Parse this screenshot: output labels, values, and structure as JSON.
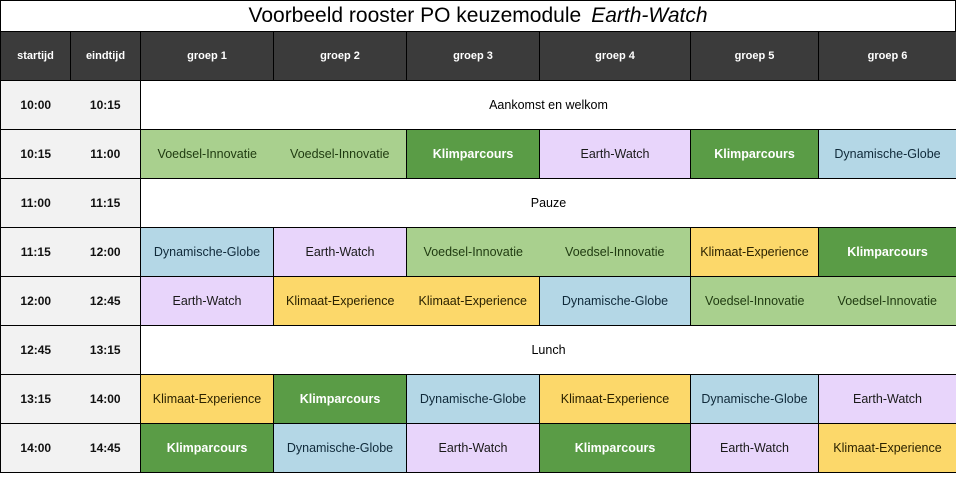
{
  "title": {
    "main": "Voorbeeld rooster PO keuzemodule",
    "italic": "Earth-Watch"
  },
  "headers": [
    "startijd",
    "eindtijd",
    "groep 1",
    "groep 2",
    "groep 3",
    "groep 4",
    "groep 5",
    "groep 6"
  ],
  "colors": {
    "header_bg": "#3b3b3b",
    "time_bg": "#f2f2f2",
    "Voedsel-Innovatie": "#a9d08e",
    "Klimparcours": "#5a9c46",
    "Earth-Watch": "#e8d5fb",
    "Dynamische-Globe": "#b4d7e6",
    "Klimaat-Experience": "#fcd86a"
  },
  "rows": [
    {
      "start": "10:00",
      "end": "10:15",
      "merged": "Aankomst en welkom"
    },
    {
      "start": "10:15",
      "end": "11:00",
      "cells": [
        "Voedsel-Innovatie",
        "Voedsel-Innovatie",
        "Klimparcours",
        "Earth-Watch",
        "Klimparcours",
        "Dynamische-Globe"
      ]
    },
    {
      "start": "11:00",
      "end": "11:15",
      "merged": "Pauze"
    },
    {
      "start": "11:15",
      "end": "12:00",
      "cells": [
        "Dynamische-Globe",
        "Earth-Watch",
        "Voedsel-Innovatie",
        "Voedsel-Innovatie",
        "Klimaat-Experience",
        "Klimparcours"
      ]
    },
    {
      "start": "12:00",
      "end": "12:45",
      "cells": [
        "Earth-Watch",
        "Klimaat-Experience",
        "Klimaat-Experience",
        "Dynamische-Globe",
        "Voedsel-Innovatie",
        "Voedsel-Innovatie"
      ]
    },
    {
      "start": "12:45",
      "end": "13:15",
      "merged": "Lunch"
    },
    {
      "start": "13:15",
      "end": "14:00",
      "cells": [
        "Klimaat-Experience",
        "Klimparcours",
        "Dynamische-Globe",
        "Klimaat-Experience",
        "Dynamische-Globe",
        "Earth-Watch"
      ]
    },
    {
      "start": "14:00",
      "end": "14:45",
      "cells": [
        "Klimparcours",
        "Dynamische-Globe",
        "Earth-Watch",
        "Klimparcours",
        "Earth-Watch",
        "Klimaat-Experience"
      ]
    }
  ]
}
